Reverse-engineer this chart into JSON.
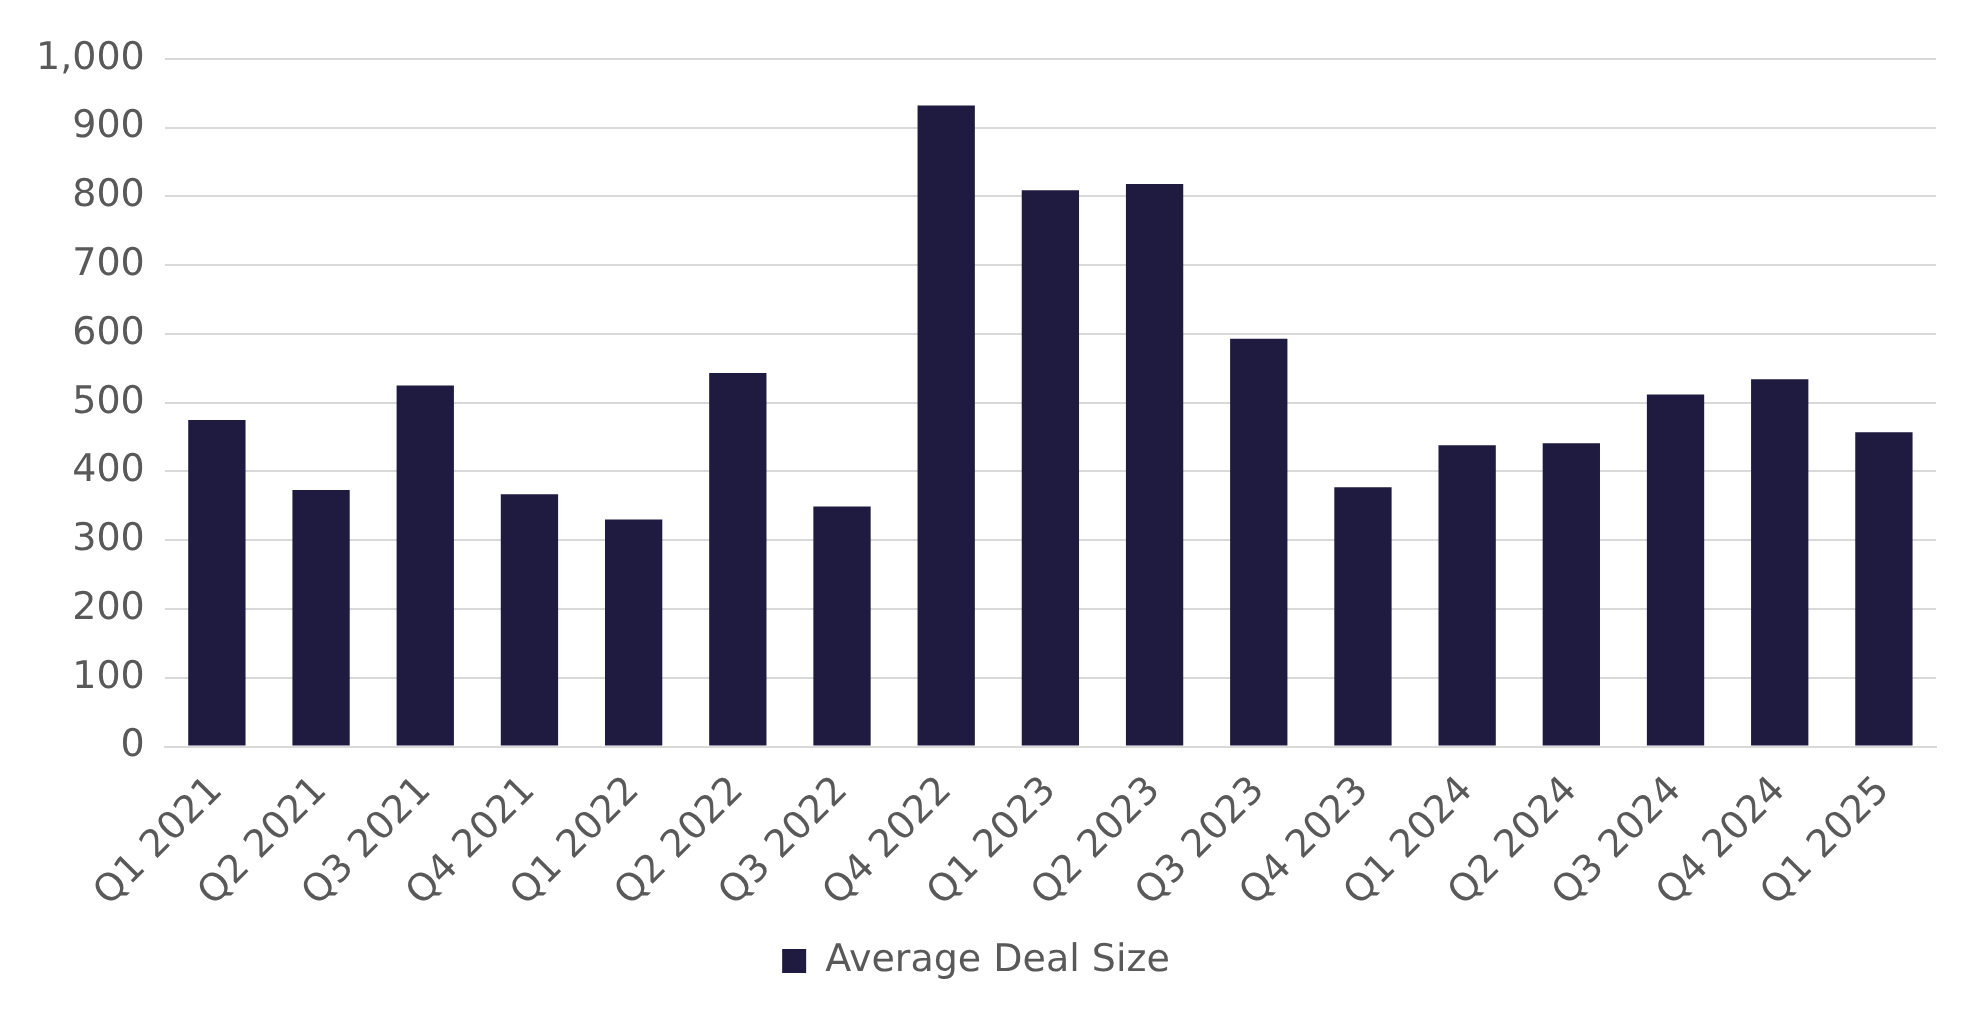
{
  "chart_data": {
    "type": "bar",
    "categories": [
      "Q1 2021",
      "Q2 2021",
      "Q3 2021",
      "Q4 2021",
      "Q1 2022",
      "Q2 2022",
      "Q3 2022",
      "Q4 2022",
      "Q1 2023",
      "Q2 2023",
      "Q3 2023",
      "Q4 2023",
      "Q1 2024",
      "Q2 2024",
      "Q3 2024",
      "Q4 2024",
      "Q1 2025"
    ],
    "series": [
      {
        "name": "Average Deal Size",
        "color": "#1e1a40",
        "values": [
          475,
          373,
          525,
          367,
          330,
          543,
          349,
          932,
          809,
          818,
          593,
          377,
          438,
          441,
          512,
          534,
          457
        ]
      }
    ],
    "ylim": [
      0,
      1000
    ],
    "yticks": [
      0,
      100,
      200,
      300,
      400,
      500,
      600,
      700,
      800,
      900,
      {
        "value": 1000,
        "label": "1,000"
      }
    ],
    "grid": "y",
    "legend": "bottom"
  }
}
